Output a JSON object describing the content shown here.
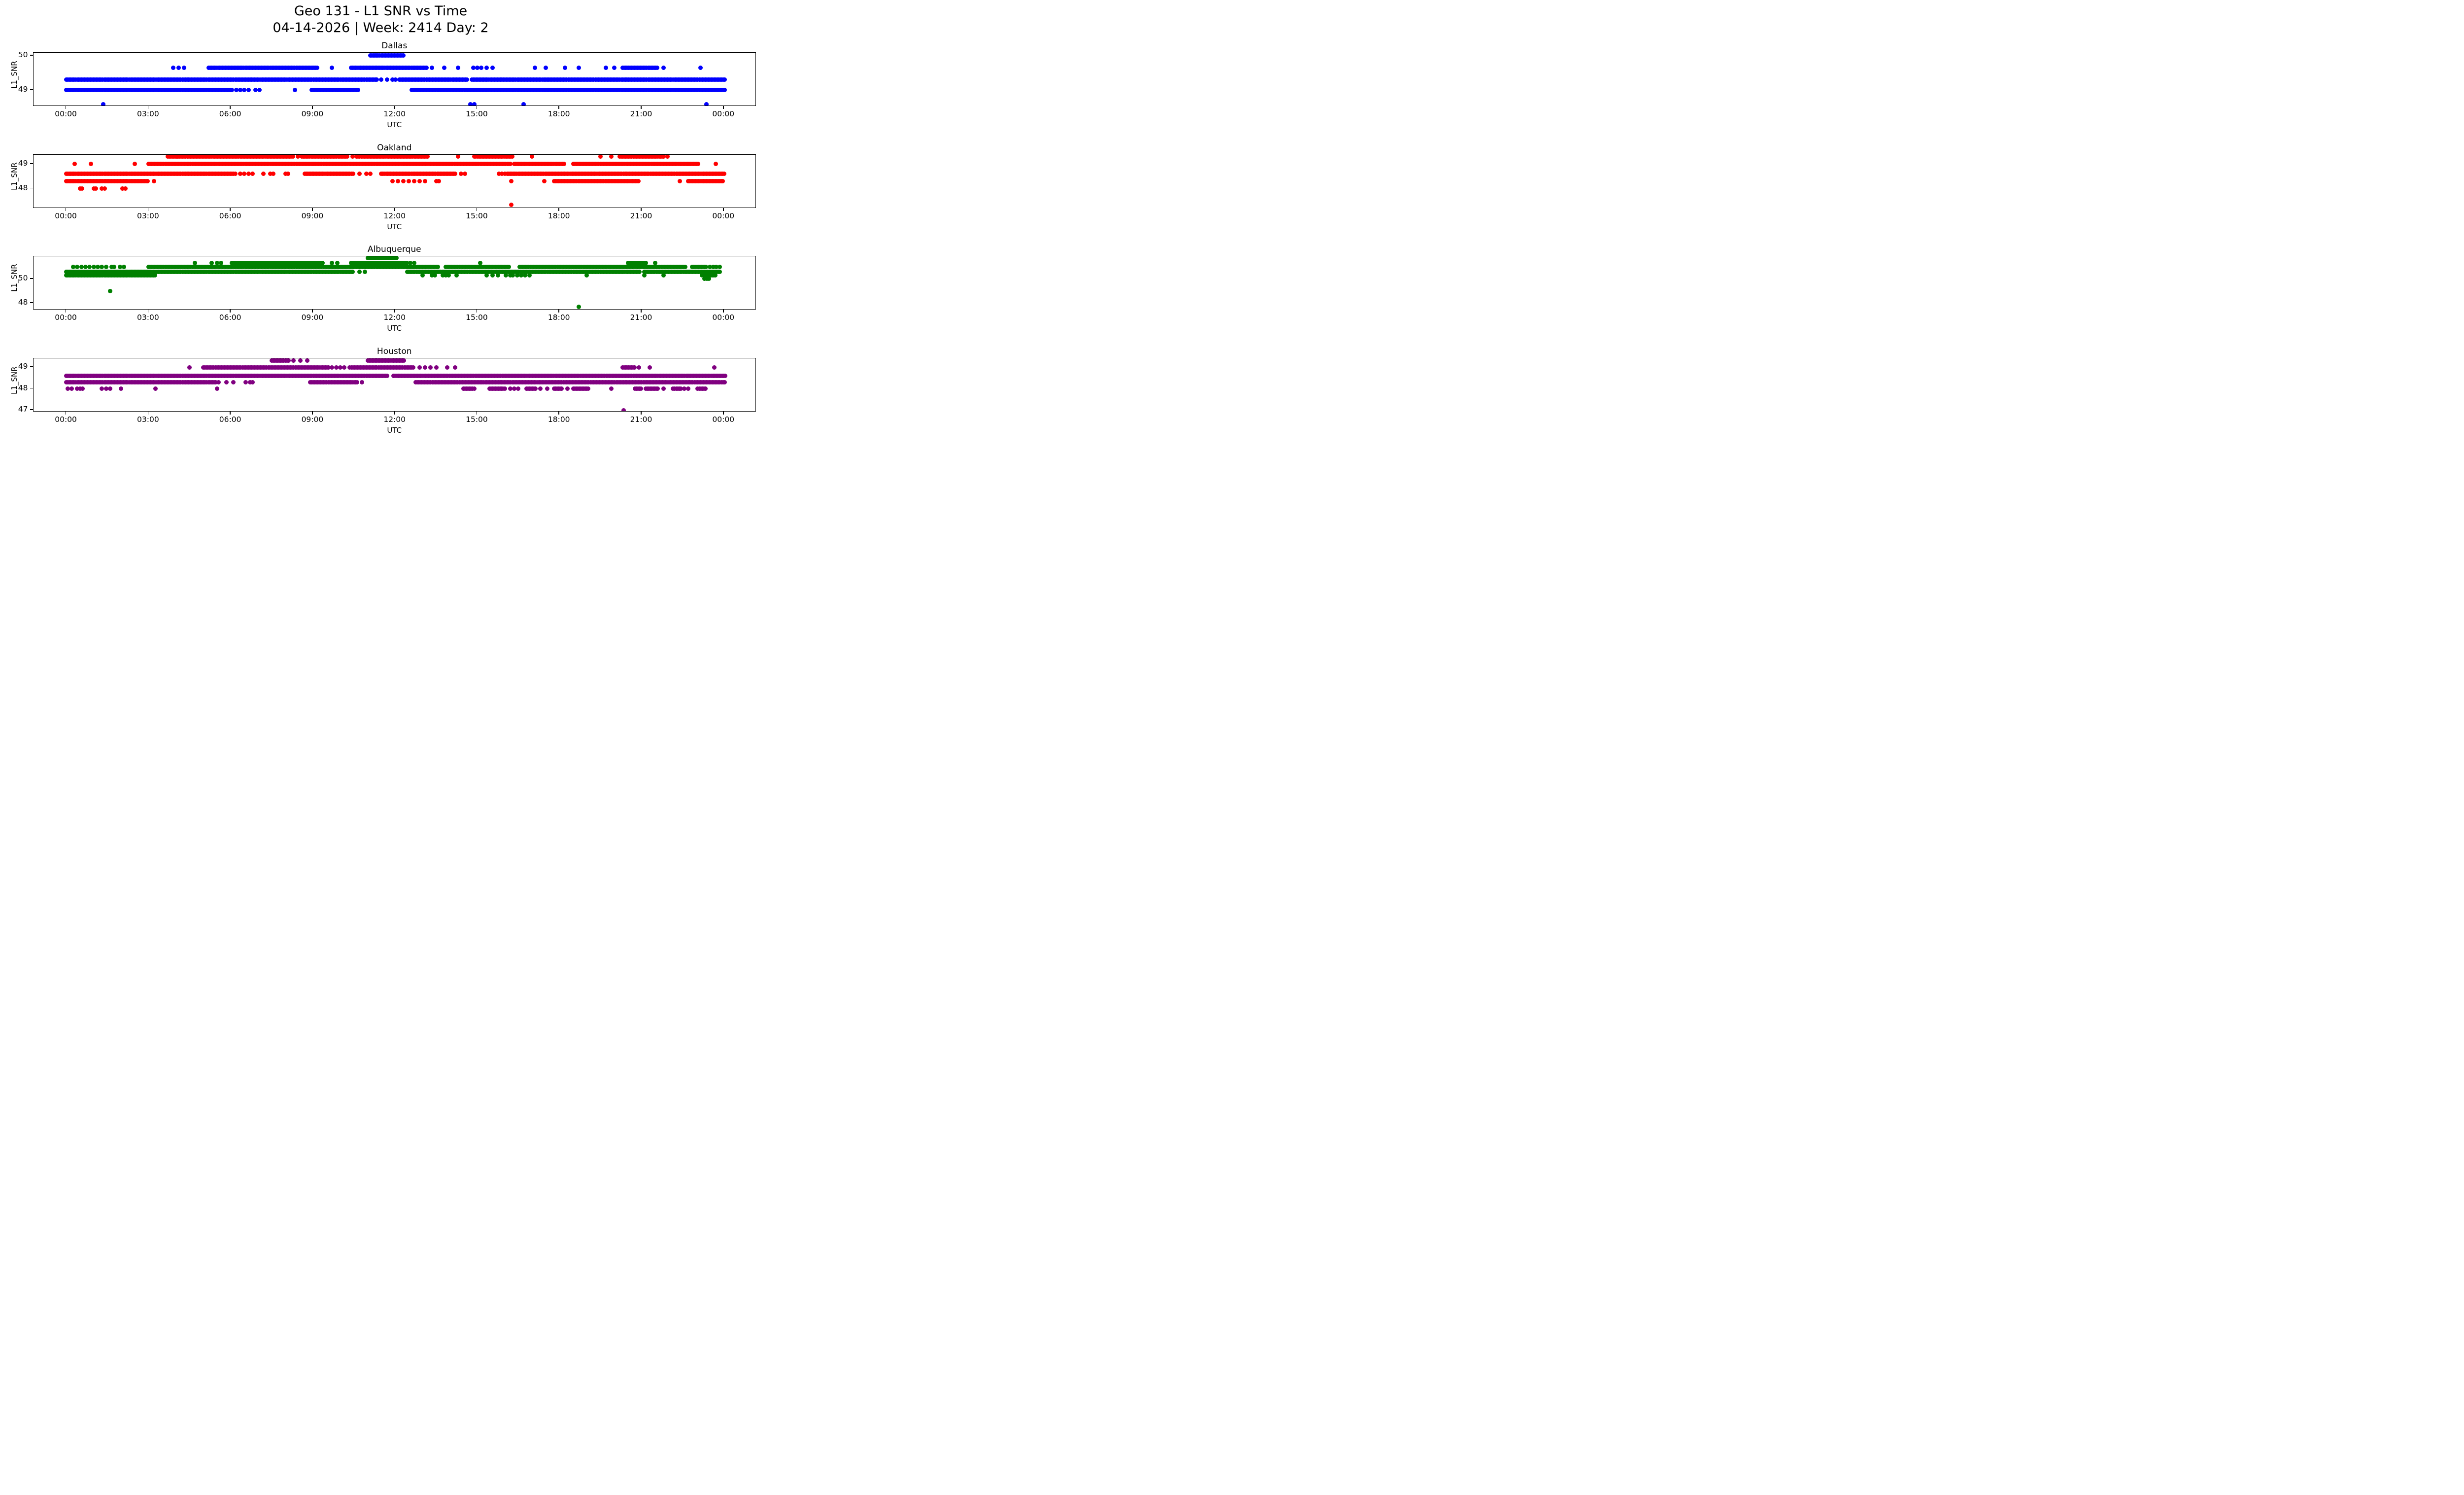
{
  "figure": {
    "title_line1": "Geo 131 - L1 SNR vs Time",
    "title_line2": "04-14-2026 | Week: 2414 Day: 2"
  },
  "chart_data": {
    "type": "scatter",
    "xlabel": "UTC",
    "ylabel": "L1_SNR",
    "x_unit": "hours UTC, 0 to 24",
    "xlim": [
      -1.21,
      25.19
    ],
    "xticks": [
      {
        "label": "00:00",
        "hour": 0
      },
      {
        "label": "03:00",
        "hour": 3
      },
      {
        "label": "06:00",
        "hour": 6
      },
      {
        "label": "09:00",
        "hour": 9
      },
      {
        "label": "12:00",
        "hour": 12
      },
      {
        "label": "15:00",
        "hour": 15
      },
      {
        "label": "18:00",
        "hour": 18
      },
      {
        "label": "21:00",
        "hour": 21
      },
      {
        "label": "00:00",
        "hour": 24
      }
    ],
    "subplots": [
      {
        "title": "Dallas",
        "color": "#0000ff",
        "ylabel": "L1_SNR",
        "xlabel": "UTC",
        "ylim": [
          48.53,
          50.08
        ],
        "yticks": [
          {
            "label": "50",
            "value": 50
          },
          {
            "label": "49",
            "value": 49
          }
        ],
        "levels": [
          {
            "snr": 50.0,
            "segments": [
              [
                11.1,
                12.35
              ]
            ],
            "dots": []
          },
          {
            "snr": 49.65,
            "segments": [
              [
                5.2,
                9.2
              ],
              [
                10.4,
                13.15
              ],
              [
                20.3,
                21.6
              ]
            ],
            "dots": [
              3.9,
              4.1,
              4.3,
              9.7,
              13.35,
              13.8,
              14.3,
              14.85,
              15.0,
              15.15,
              15.35,
              15.55,
              17.1,
              17.5,
              18.2,
              18.7,
              19.7,
              20.0,
              21.8,
              23.15
            ]
          },
          {
            "snr": 49.3,
            "segments": [
              [
                0.0,
                11.35
              ],
              [
                12.15,
                14.65
              ],
              [
                14.8,
                24.05
              ]
            ],
            "dots": [
              11.5,
              11.7,
              11.9,
              12.02
            ]
          },
          {
            "snr": 49.0,
            "segments": [
              [
                0.0,
                6.05
              ],
              [
                8.95,
                10.7
              ],
              [
                12.6,
                24.05
              ]
            ],
            "dots": [
              6.2,
              6.35,
              6.5,
              6.65,
              6.9,
              7.05,
              8.35
            ]
          },
          {
            "snr": 48.6,
            "segments": [],
            "dots": [
              1.35,
              14.75,
              14.9,
              16.7,
              23.37
            ]
          }
        ]
      },
      {
        "title": "Oakland",
        "color": "#ff0000",
        "ylabel": "L1_SNR",
        "xlabel": "UTC",
        "ylim": [
          47.2,
          49.38
        ],
        "yticks": [
          {
            "label": "49",
            "value": 49
          },
          {
            "label": "48",
            "value": 48
          }
        ],
        "levels": [
          {
            "snr": 49.3,
            "segments": [
              [
                3.7,
                8.3
              ],
              [
                8.6,
                10.3
              ],
              [
                10.6,
                13.2
              ],
              [
                14.9,
                16.3
              ],
              [
                20.2,
                21.8
              ]
            ],
            "dots": [
              4.05,
              8.45,
              10.45,
              14.3,
              17.0,
              19.5,
              19.9,
              21.95
            ]
          },
          {
            "snr": 49.0,
            "segments": [
              [
                3.0,
                16.2
              ],
              [
                16.35,
                18.2
              ],
              [
                18.5,
                23.1
              ]
            ],
            "dots": [
              0.3,
              0.9,
              2.5,
              23.7
            ]
          },
          {
            "snr": 48.6,
            "segments": [
              [
                0.0,
                6.2
              ],
              [
                8.7,
                10.5
              ],
              [
                11.5,
                14.2
              ],
              [
                16.1,
                24.03
              ]
            ],
            "dots": [
              6.35,
              6.5,
              6.65,
              6.8,
              7.2,
              7.45,
              7.55,
              8.0,
              8.1,
              10.7,
              10.95,
              11.1,
              14.4,
              14.55,
              15.8,
              15.9,
              16.0
            ]
          },
          {
            "snr": 48.3,
            "segments": [
              [
                0.0,
                3.0
              ],
              [
                17.8,
                20.9
              ],
              [
                22.7,
                24.0
              ]
            ],
            "dots": [
              3.2,
              11.9,
              12.1,
              12.3,
              12.5,
              12.7,
              12.9,
              13.1,
              13.5,
              13.6,
              16.25,
              17.45,
              22.4
            ]
          },
          {
            "snr": 48.0,
            "segments": [],
            "dots": [
              0.5,
              0.57,
              1.0,
              1.07,
              1.3,
              1.4,
              2.05,
              2.15
            ]
          },
          {
            "snr": 47.35,
            "segments": [],
            "dots": [
              16.25
            ]
          }
        ]
      },
      {
        "title": "Albuquerque",
        "color": "#008000",
        "ylabel": "L1_SNR",
        "xlabel": "UTC",
        "ylim": [
          47.45,
          51.86
        ],
        "yticks": [
          {
            "label": "50",
            "value": 50
          },
          {
            "label": "48",
            "value": 48
          }
        ],
        "levels": [
          {
            "snr": 51.7,
            "segments": [
              [
                11.0,
                12.05
              ]
            ],
            "dots": []
          },
          {
            "snr": 51.3,
            "segments": [
              [
                6.05,
                9.4
              ],
              [
                10.4,
                12.45
              ],
              [
                20.5,
                21.2
              ]
            ],
            "dots": [
              4.7,
              5.3,
              5.5,
              5.65,
              9.7,
              9.9,
              12.55,
              12.7,
              15.1,
              21.5
            ]
          },
          {
            "snr": 51.0,
            "segments": [
              [
                3.0,
                13.6
              ],
              [
                13.85,
                16.2
              ],
              [
                16.55,
                22.6
              ],
              [
                22.85,
                23.35
              ]
            ],
            "dots": [
              0.25,
              0.4,
              0.55,
              0.7,
              0.85,
              1.0,
              1.15,
              1.3,
              1.45,
              1.65,
              1.75,
              1.95,
              2.1,
              23.5,
              23.62,
              23.72,
              23.86
            ]
          },
          {
            "snr": 50.6,
            "segments": [
              [
                0.0,
                10.5
              ],
              [
                12.45,
                20.95
              ],
              [
                21.1,
                23.9
              ]
            ],
            "dots": [
              10.7,
              10.9
            ]
          },
          {
            "snr": 50.3,
            "segments": [
              [
                0.0,
                3.25
              ],
              [
                23.2,
                23.7
              ]
            ],
            "dots": [
              13.0,
              13.35,
              13.45,
              13.75,
              13.85,
              13.95,
              14.25,
              15.35,
              15.55,
              15.75,
              16.05,
              16.2,
              16.3,
              16.45,
              16.6,
              16.75,
              16.9,
              19.0,
              21.1,
              21.8
            ]
          },
          {
            "snr": 50.0,
            "segments": [],
            "dots": [
              23.3,
              23.38,
              23.45
            ]
          },
          {
            "snr": 49.0,
            "segments": [],
            "dots": [
              1.6
            ]
          },
          {
            "snr": 47.7,
            "segments": [],
            "dots": [
              18.7
            ]
          }
        ]
      },
      {
        "title": "Houston",
        "color": "#800080",
        "ylabel": "L1_SNR",
        "xlabel": "UTC",
        "ylim": [
          46.91,
          49.41
        ],
        "yticks": [
          {
            "label": "49",
            "value": 49
          },
          {
            "label": "48",
            "value": 48
          },
          {
            "label": "47",
            "value": 47
          }
        ],
        "levels": [
          {
            "snr": 49.3,
            "segments": [
              [
                7.5,
                8.15
              ],
              [
                11.0,
                12.35
              ]
            ],
            "dots": [
              8.3,
              8.55,
              8.8
            ]
          },
          {
            "snr": 49.0,
            "segments": [
              [
                5.0,
                9.6
              ],
              [
                10.35,
                12.7
              ],
              [
                20.3,
                20.75
              ]
            ],
            "dots": [
              4.5,
              9.7,
              9.85,
              10.0,
              10.15,
              12.9,
              13.1,
              13.3,
              13.5,
              13.9,
              14.2,
              20.9,
              21.3,
              23.65
            ]
          },
          {
            "snr": 48.6,
            "segments": [
              [
                0.0,
                11.74
              ],
              [
                11.95,
                24.05
              ]
            ],
            "dots": []
          },
          {
            "snr": 48.3,
            "segments": [
              [
                0.0,
                5.45
              ],
              [
                8.9,
                10.65
              ],
              [
                12.75,
                24.05
              ]
            ],
            "dots": [
              5.55,
              5.85,
              6.1,
              6.55,
              6.7,
              6.8,
              10.8
            ]
          },
          {
            "snr": 48.0,
            "segments": [
              [
                14.5,
                14.9
              ],
              [
                15.45,
                16.0
              ],
              [
                16.8,
                17.15
              ],
              [
                17.8,
                18.1
              ],
              [
                18.5,
                19.05
              ],
              [
                20.75,
                21.0
              ],
              [
                21.15,
                21.6
              ],
              [
                22.15,
                22.45
              ],
              [
                23.05,
                23.36
              ]
            ],
            "dots": [
              0.05,
              0.2,
              0.4,
              0.5,
              0.6,
              1.3,
              1.45,
              1.6,
              2.0,
              3.25,
              5.5,
              16.2,
              16.35,
              16.5,
              17.3,
              17.55,
              18.3,
              19.9,
              21.8,
              22.55,
              22.7
            ]
          },
          {
            "snr": 47.0,
            "segments": [],
            "dots": [
              20.35
            ]
          }
        ]
      }
    ]
  }
}
